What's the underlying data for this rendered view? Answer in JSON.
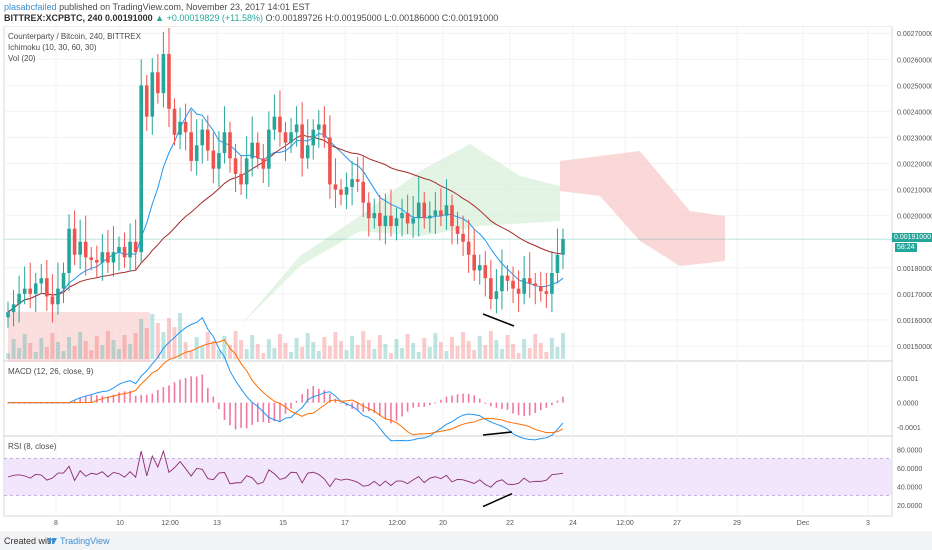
{
  "header": {
    "username": "plasabcfailed",
    "published": "published on TradingView.com, November 23, 2017 14:01 EST",
    "symbol": "BITTREX:XCPBTC, 240",
    "last": "0.00191000",
    "change_arrow": "▲",
    "change": "+0.00019829 (+11.58%)",
    "open": "O:0.00189726",
    "high": "H:0.00195000",
    "low": "L:0.00186000",
    "close": "C:0.00191000"
  },
  "legend": {
    "title": "Counterparty / Bitcoin, 240, BITTREX",
    "ichimoku": "Ichimoku (10, 30, 60, 30)",
    "vol": "Vol (20)",
    "macd": "MACD (12, 26, close, 9)",
    "rsi": "RSI (8, close)"
  },
  "price_axis": [
    "0.00270000",
    "0.00260000",
    "0.00250000",
    "0.00240000",
    "0.00230000",
    "0.00220000",
    "0.00210000",
    "0.00200000",
    "0.00180000",
    "0.00170000",
    "0.00160000",
    "0.00150000"
  ],
  "price_tag": "0.00191000",
  "price_tag_sub": "58:24",
  "macd_axis": [
    "0.0001",
    "0.0000",
    "-0.0001"
  ],
  "rsi_axis": [
    "80.0000",
    "60.0000",
    "40.0000",
    "20.0000"
  ],
  "time_axis": [
    "8",
    "10",
    "12:00",
    "13",
    "15",
    "17",
    "12:00",
    "20",
    "22",
    "24",
    "12:00",
    "27",
    "29",
    "Dec",
    "3"
  ],
  "footer": {
    "created": "Created with",
    "brand": "TradingView"
  },
  "colors": {
    "up": "#26a69a",
    "down": "#ef5350",
    "ichimoku_conv": "#2196f3",
    "ichimoku_base": "#a52a2a",
    "cloud_green": "#4caf50",
    "cloud_red": "#f44336",
    "macd_line": "#2196f3",
    "signal_line": "#ff6d00",
    "rsi_line": "#8e2c6a",
    "rsi_band": "#ede0fb"
  },
  "chart_data": {
    "type": "candlestick",
    "title": "Counterparty / Bitcoin, 240, BITTREX",
    "ylim": [
      0.00145,
      0.00272
    ],
    "closes": [
      0.00163,
      0.00166,
      0.0017,
      0.00172,
      0.0017,
      0.00174,
      0.00176,
      0.00169,
      0.00166,
      0.00172,
      0.00178,
      0.00195,
      0.00185,
      0.0019,
      0.00184,
      0.00183,
      0.00182,
      0.00186,
      0.00182,
      0.00186,
      0.00188,
      0.00184,
      0.0019,
      0.00186,
      0.0025,
      0.00238,
      0.00255,
      0.00247,
      0.00262,
      0.00241,
      0.00231,
      0.00236,
      0.00232,
      0.00221,
      0.00227,
      0.00233,
      0.00225,
      0.00218,
      0.00224,
      0.00232,
      0.00222,
      0.00216,
      0.00212,
      0.00222,
      0.00228,
      0.00222,
      0.00218,
      0.00233,
      0.00238,
      0.00232,
      0.00228,
      0.00232,
      0.00235,
      0.00222,
      0.00227,
      0.00233,
      0.00235,
      0.0023,
      0.00212,
      0.0021,
      0.00208,
      0.00211,
      0.00214,
      0.00213,
      0.00205,
      0.00199,
      0.00201,
      0.00196,
      0.002,
      0.00196,
      0.00199,
      0.00201,
      0.00197,
      0.00199,
      0.00205,
      0.00199,
      0.002,
      0.00202,
      0.002,
      0.00204,
      0.00196,
      0.00193,
      0.0019,
      0.00185,
      0.00179,
      0.00181,
      0.00176,
      0.00168,
      0.00171,
      0.00177,
      0.00175,
      0.00172,
      0.0017,
      0.00176,
      0.00174,
      0.00173,
      0.00171,
      0.0017,
      0.00178,
      0.00185,
      0.00191
    ],
    "annotations": [
      "bullish divergence trendline on price",
      "bullish divergence trendline on MACD",
      "bullish divergence trendline on RSI"
    ]
  }
}
